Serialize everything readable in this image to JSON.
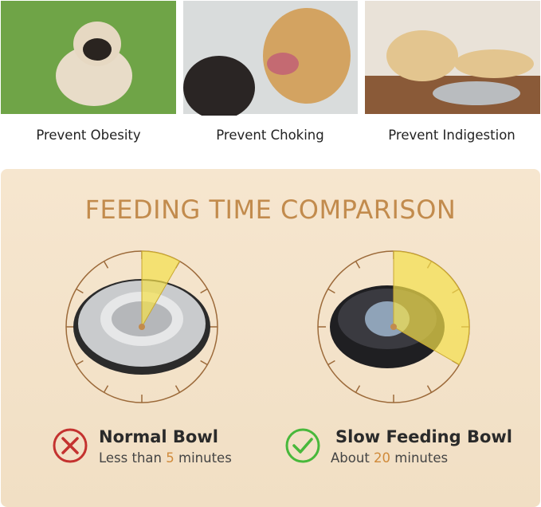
{
  "benefits": [
    {
      "label": "Prevent Obesity"
    },
    {
      "label": "Prevent Choking"
    },
    {
      "label": "Prevent Indigestion"
    }
  ],
  "comparison": {
    "title": "FEEDING TIME COMPARISON",
    "items": [
      {
        "name": "Normal Bowl",
        "prefix": "Less than",
        "minutes": 5,
        "suffix": "minutes"
      },
      {
        "name": "Slow Feeding Bowl",
        "prefix": "About",
        "minutes": 20,
        "suffix": "minutes"
      }
    ]
  }
}
